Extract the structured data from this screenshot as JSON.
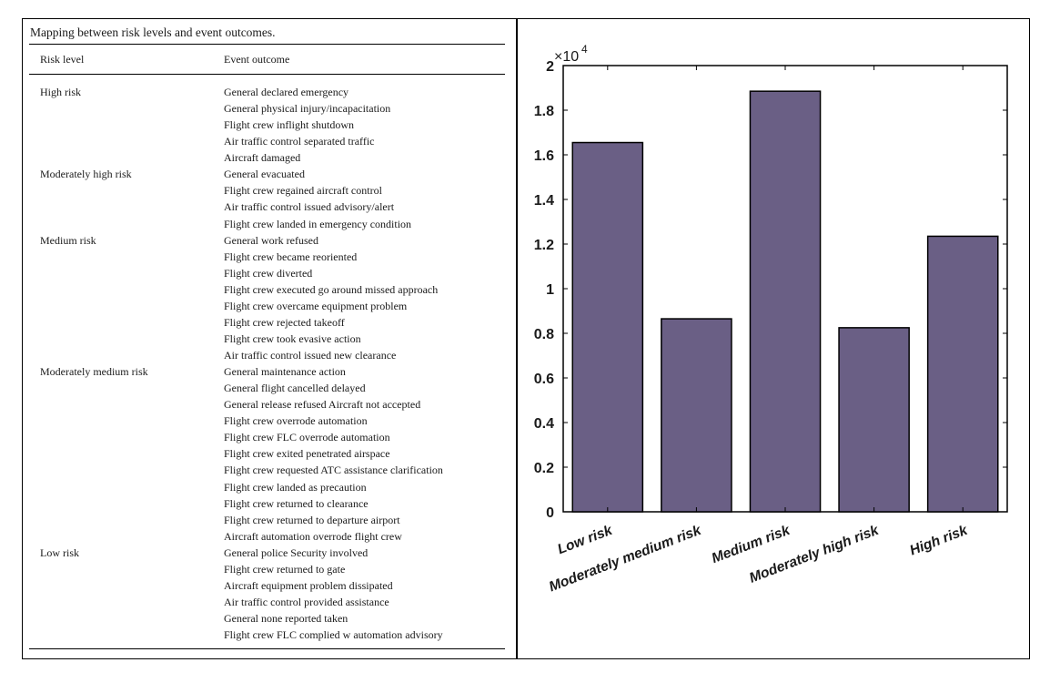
{
  "table": {
    "caption": "Mapping between risk levels and event outcomes.",
    "headers": [
      "Risk level",
      "Event outcome"
    ],
    "rows": [
      {
        "level": "High risk",
        "outcome": "General declared emergency"
      },
      {
        "level": "",
        "outcome": "General physical injury/incapacitation"
      },
      {
        "level": "",
        "outcome": "Flight crew inflight shutdown"
      },
      {
        "level": "",
        "outcome": "Air traffic control separated traffic"
      },
      {
        "level": "",
        "outcome": "Aircraft damaged"
      },
      {
        "level": "Moderately high risk",
        "outcome": "General evacuated"
      },
      {
        "level": "",
        "outcome": "Flight crew regained aircraft control"
      },
      {
        "level": "",
        "outcome": "Air traffic control issued advisory/alert"
      },
      {
        "level": "",
        "outcome": "Flight crew landed in emergency condition"
      },
      {
        "level": "Medium risk",
        "outcome": "General work refused"
      },
      {
        "level": "",
        "outcome": "Flight crew became reoriented"
      },
      {
        "level": "",
        "outcome": "Flight crew diverted"
      },
      {
        "level": "",
        "outcome": "Flight crew executed go around missed approach"
      },
      {
        "level": "",
        "outcome": "Flight crew overcame equipment problem"
      },
      {
        "level": "",
        "outcome": "Flight crew rejected takeoff"
      },
      {
        "level": "",
        "outcome": "Flight crew took evasive action"
      },
      {
        "level": "",
        "outcome": "Air traffic control issued new clearance"
      },
      {
        "level": "Moderately medium risk",
        "outcome": "General maintenance action"
      },
      {
        "level": "",
        "outcome": "General flight cancelled delayed"
      },
      {
        "level": "",
        "outcome": "General release refused Aircraft not accepted"
      },
      {
        "level": "",
        "outcome": "Flight crew overrode automation"
      },
      {
        "level": "",
        "outcome": "Flight crew FLC overrode automation"
      },
      {
        "level": "",
        "outcome": "Flight crew exited penetrated airspace"
      },
      {
        "level": "",
        "outcome": "Flight crew requested ATC assistance clarification"
      },
      {
        "level": "",
        "outcome": "Flight crew landed as precaution"
      },
      {
        "level": "",
        "outcome": "Flight crew returned to clearance"
      },
      {
        "level": "",
        "outcome": "Flight crew returned to departure airport"
      },
      {
        "level": "",
        "outcome": "Aircraft automation overrode flight crew"
      },
      {
        "level": "Low risk",
        "outcome": "General police Security involved"
      },
      {
        "level": "",
        "outcome": "Flight crew returned to gate"
      },
      {
        "level": "",
        "outcome": "Aircraft equipment problem dissipated"
      },
      {
        "level": "",
        "outcome": "Air traffic control provided assistance"
      },
      {
        "level": "",
        "outcome": "General none reported taken"
      },
      {
        "level": "",
        "outcome": "Flight crew FLC complied w automation advisory"
      }
    ]
  },
  "chart_data": {
    "type": "bar",
    "categories": [
      "Low risk",
      "Moderately medium risk",
      "Medium risk",
      "Moderately high risk",
      "High risk"
    ],
    "values": [
      16550,
      8650,
      18850,
      8250,
      12350
    ],
    "ylim": [
      0,
      20000
    ],
    "yticks": [
      0,
      0.2,
      0.4,
      0.6,
      0.8,
      1,
      1.2,
      1.4,
      1.6,
      1.8,
      2
    ],
    "ytick_labels": [
      "0",
      "0.2",
      "0.4",
      "0.6",
      "0.8",
      "1",
      "1.2",
      "1.4",
      "1.6",
      "1.8",
      "2"
    ],
    "y_multiplier_base": "×10",
    "y_multiplier_exp": "4",
    "title": "",
    "xlabel": "",
    "ylabel": "",
    "bar_color": "#6a5f85",
    "grid": false
  }
}
